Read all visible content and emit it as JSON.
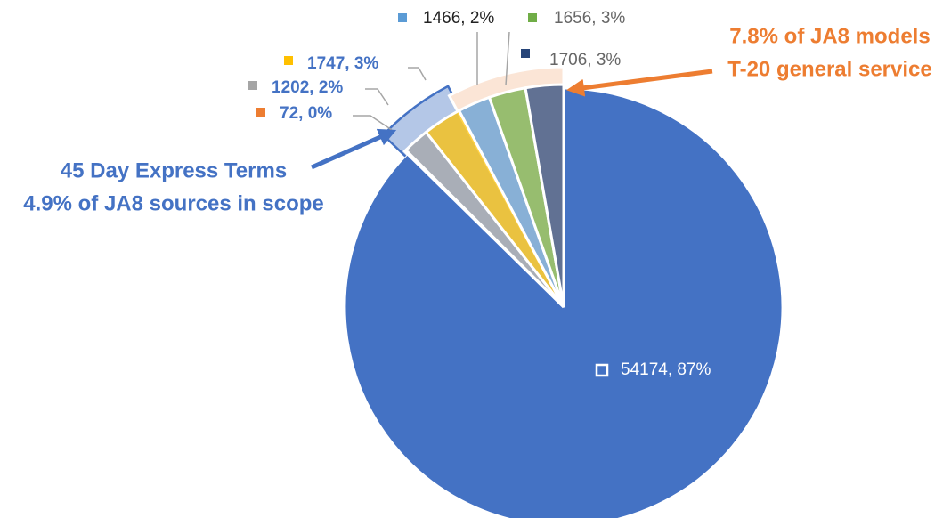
{
  "chart_data": {
    "type": "pie",
    "values": [
      54174,
      72,
      1202,
      1747,
      1466,
      1656,
      1706
    ],
    "value_labels": [
      "54174, 87%",
      "72, 0%",
      "1202, 2%",
      "1747, 3%",
      "1466, 2%",
      "1656, 3%",
      "1706, 3%"
    ],
    "colors": [
      "#4472c4",
      "#ed7d31",
      "#a5a5a5",
      "#ffc000",
      "#5b9bd5",
      "#70ad47",
      "#264478"
    ],
    "annotations": [
      {
        "lines": [
          "45 Day Express Terms",
          "4.9% of JA8 sources in scope"
        ],
        "color": "#4472c4"
      },
      {
        "lines": [
          "7.8% of JA8 models",
          "T-20 general service"
        ],
        "color": "#ed7d31"
      }
    ]
  }
}
